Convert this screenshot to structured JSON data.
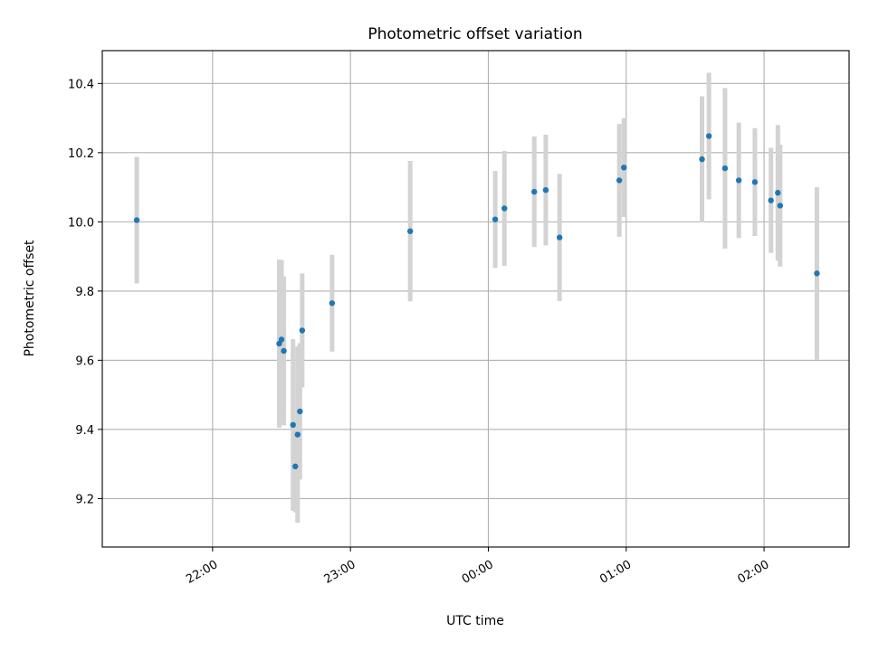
{
  "chart_data": {
    "type": "scatter",
    "title": "Photometric offset variation",
    "xlabel": "UTC time",
    "ylabel": "Photometric offset",
    "x_unit": "UTC time (HH:MM), times after 24:00 fall on the following day",
    "xlim": [
      "21:12",
      "02:37"
    ],
    "ylim": [
      9.06,
      10.495
    ],
    "x_ticks": [
      "22:00",
      "23:00",
      "00:00",
      "01:00",
      "02:00"
    ],
    "y_ticks": [
      "9.2",
      "9.4",
      "9.6",
      "9.8",
      "10.0",
      "10.2",
      "10.4"
    ],
    "grid": true,
    "legend": false,
    "colors": {
      "point": "#1f77b4",
      "errorbar": "#d3d3d3",
      "grid": "#b0b0b0"
    },
    "points": [
      {
        "x": "21:27",
        "y": 10.005,
        "err": 0.183
      },
      {
        "x": "22:29",
        "y": 9.648,
        "err": 0.243
      },
      {
        "x": "22:30",
        "y": 9.66,
        "err": 0.23
      },
      {
        "x": "22:31",
        "y": 9.627,
        "err": 0.215
      },
      {
        "x": "22:35",
        "y": 9.413,
        "err": 0.248
      },
      {
        "x": "22:36",
        "y": 9.293,
        "err": 0.133
      },
      {
        "x": "22:37",
        "y": 9.385,
        "err": 0.255
      },
      {
        "x": "22:38",
        "y": 9.452,
        "err": 0.197
      },
      {
        "x": "22:39",
        "y": 9.686,
        "err": 0.165
      },
      {
        "x": "22:52",
        "y": 9.765,
        "err": 0.14
      },
      {
        "x": "23:26",
        "y": 9.973,
        "err": 0.203
      },
      {
        "x": "00:03",
        "y": 10.007,
        "err": 0.14
      },
      {
        "x": "00:07",
        "y": 10.039,
        "err": 0.166
      },
      {
        "x": "00:20",
        "y": 10.087,
        "err": 0.16
      },
      {
        "x": "00:25",
        "y": 10.092,
        "err": 0.16
      },
      {
        "x": "00:31",
        "y": 9.955,
        "err": 0.184
      },
      {
        "x": "00:57",
        "y": 10.12,
        "err": 0.163
      },
      {
        "x": "00:59",
        "y": 10.157,
        "err": 0.143
      },
      {
        "x": "01:33",
        "y": 10.181,
        "err": 0.182
      },
      {
        "x": "01:36",
        "y": 10.248,
        "err": 0.183
      },
      {
        "x": "01:43",
        "y": 10.155,
        "err": 0.232
      },
      {
        "x": "01:49",
        "y": 10.12,
        "err": 0.167
      },
      {
        "x": "01:56",
        "y": 10.115,
        "err": 0.156
      },
      {
        "x": "02:03",
        "y": 10.062,
        "err": 0.152
      },
      {
        "x": "02:06",
        "y": 10.084,
        "err": 0.196
      },
      {
        "x": "02:07",
        "y": 10.047,
        "err": 0.176
      },
      {
        "x": "02:23",
        "y": 9.851,
        "err": 0.249
      }
    ]
  }
}
